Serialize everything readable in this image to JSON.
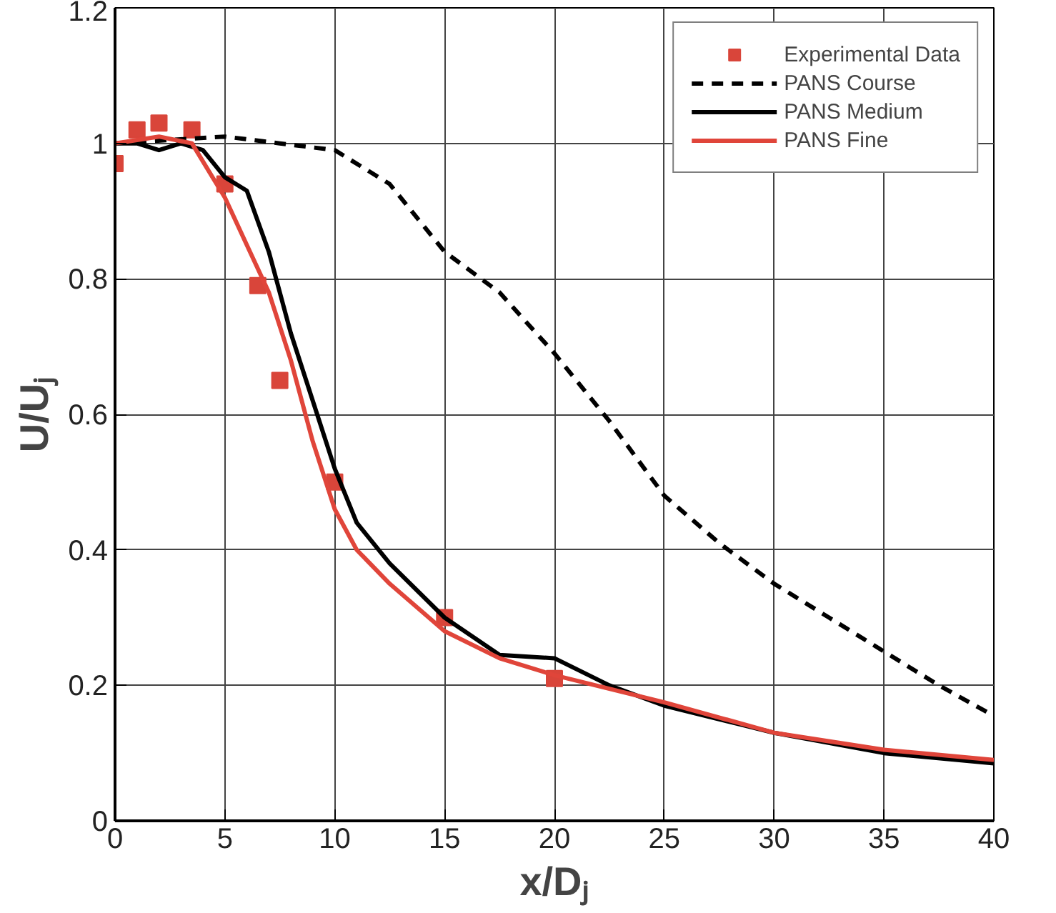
{
  "chart_data": {
    "type": "line",
    "xlabel": "x/Dⱼ",
    "ylabel": "U/Uⱼ",
    "xlim": [
      0,
      40
    ],
    "ylim": [
      0,
      1.2
    ],
    "xticks": [
      0,
      5,
      10,
      15,
      20,
      25,
      30,
      35,
      40
    ],
    "yticks": [
      0,
      0.2,
      0.4,
      0.6,
      0.8,
      1,
      1.2
    ],
    "grid": true,
    "legend": "top right",
    "series": [
      {
        "name": "Experimental Data",
        "type": "scatter",
        "marker": "square",
        "color": "#d9453a",
        "x": [
          0,
          0.2,
          0.5,
          1,
          2,
          3.5,
          5,
          6.5,
          7.5,
          10,
          15,
          20
        ],
        "values": [
          0.97,
          null,
          null,
          1.02,
          1.03,
          1.02,
          0.94,
          0.79,
          0.65,
          0.5,
          0.3,
          0.21
        ]
      },
      {
        "name": "PANS Course",
        "line_style": "dashed",
        "color": "#000000",
        "x": [
          0,
          5,
          7.5,
          10,
          12.5,
          15,
          17.5,
          20,
          22.5,
          25,
          27.5,
          30,
          32.5,
          35,
          37.5,
          40
        ],
        "values": [
          1.0,
          1.01,
          1.0,
          0.99,
          0.94,
          0.84,
          0.78,
          0.69,
          0.59,
          0.48,
          0.41,
          0.35,
          0.3,
          0.25,
          0.2,
          0.155
        ]
      },
      {
        "name": "PANS Medium",
        "line_style": "solid",
        "color": "#000000",
        "x": [
          0,
          1,
          2,
          3,
          4,
          5,
          6,
          7,
          8,
          9,
          10,
          11,
          12.5,
          15,
          17.5,
          20,
          22.5,
          25,
          30,
          35,
          40
        ],
        "values": [
          1.0,
          1.0,
          0.99,
          1.0,
          0.99,
          0.95,
          0.93,
          0.84,
          0.72,
          0.62,
          0.52,
          0.44,
          0.38,
          0.3,
          0.245,
          0.24,
          0.2,
          0.17,
          0.13,
          0.1,
          0.085
        ]
      },
      {
        "name": "PANS Fine",
        "line_style": "solid",
        "color": "#e0453a",
        "x": [
          0,
          2,
          3.5,
          5,
          6,
          7,
          8,
          9,
          10,
          11,
          12.5,
          15,
          17.5,
          20,
          25,
          30,
          35,
          40
        ],
        "values": [
          1.0,
          1.01,
          1.0,
          0.92,
          0.85,
          0.78,
          0.68,
          0.56,
          0.46,
          0.4,
          0.35,
          0.28,
          0.24,
          0.215,
          0.175,
          0.13,
          0.105,
          0.09
        ]
      }
    ]
  }
}
